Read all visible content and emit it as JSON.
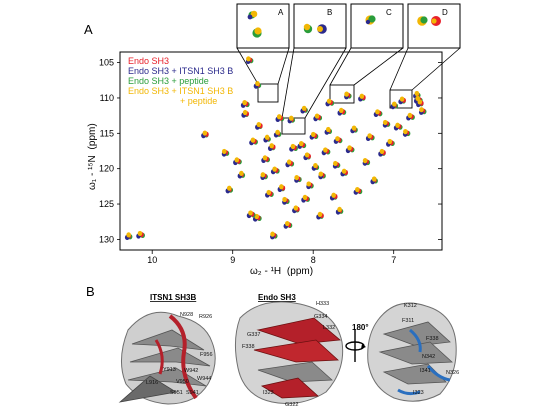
{
  "panel_a": {
    "label": "A",
    "legend": [
      {
        "text": "Endo SH3",
        "color": "#e8202a"
      },
      {
        "text": "Endo SH3 + ITSN1 SH3 B",
        "color": "#2b2a8c"
      },
      {
        "text": "Endo SH3 + peptide",
        "color": "#2a9d3a"
      },
      {
        "text": "Endo SH3 + ITSN1 SH3 B",
        "color": "#f2b705"
      },
      {
        "text": "+ peptide",
        "color": "#f2b705"
      }
    ],
    "insets": [
      "A",
      "B",
      "C",
      "D"
    ],
    "x_axis_label_main": "ω₂ - ¹H",
    "x_axis_label_unit": "(ppm)",
    "y_axis_label_main": "ω₁ - ¹⁵N",
    "y_axis_label_unit": "(ppm)"
  },
  "panel_b": {
    "label": "B",
    "structure_titles": [
      "ITSN1 SH3B",
      "Endo SH3"
    ],
    "rotation_label": "180°",
    "residues_left": [
      "N928",
      "R926",
      "F956",
      "Y913",
      "W942",
      "W944",
      "V950",
      "L916",
      "S951",
      "S941"
    ],
    "residues_middle": [
      "H333",
      "G334",
      "G337",
      "L332",
      "F338",
      "G322",
      "I323"
    ],
    "residues_right": [
      "K312",
      "F311",
      "F338",
      "N342",
      "I341",
      "N326",
      "I323"
    ]
  },
  "colors": {
    "red": "#e8202a",
    "navy": "#2b2a8c",
    "green": "#2a9d3a",
    "yellow": "#f2b705",
    "ribbon_gray": "#8a8a8a",
    "ribbon_red": "#b4202a",
    "ribbon_blue": "#2a6fbf"
  },
  "chart_data": {
    "type": "scatter",
    "title": "",
    "xlabel": "ω₂ - ¹H (ppm)",
    "ylabel": "ω₁ - ¹⁵N (ppm)",
    "xlim": [
      10.4,
      6.4
    ],
    "ylim": [
      131.5,
      103.5
    ],
    "x_inverted": true,
    "y_inverted": true,
    "x_ticks": [
      10,
      9,
      8,
      7
    ],
    "y_ticks": [
      105,
      110,
      115,
      120,
      125,
      130
    ],
    "series": [
      {
        "name": "Endo SH3",
        "color": "#e8202a"
      },
      {
        "name": "Endo SH3 + ITSN1 SH3 B",
        "color": "#2b2a8c"
      },
      {
        "name": "Endo SH3 + peptide",
        "color": "#2a9d3a"
      },
      {
        "name": "Endo SH3 + ITSN1 SH3 B + peptide",
        "color": "#f2b705"
      }
    ],
    "peaks": [
      [
        10.3,
        129.6
      ],
      [
        10.15,
        129.4
      ],
      [
        9.35,
        115.2
      ],
      [
        9.1,
        117.8
      ],
      [
        8.95,
        119.0
      ],
      [
        8.9,
        120.9
      ],
      [
        8.85,
        110.9
      ],
      [
        8.85,
        112.3
      ],
      [
        8.8,
        104.7
      ],
      [
        8.75,
        116.2
      ],
      [
        8.7,
        108.2
      ],
      [
        8.7,
        127.0
      ],
      [
        8.68,
        114.0
      ],
      [
        8.62,
        121.1
      ],
      [
        8.6,
        118.7
      ],
      [
        8.58,
        115.8
      ],
      [
        8.55,
        123.6
      ],
      [
        8.52,
        117.0
      ],
      [
        8.5,
        129.5
      ],
      [
        8.48,
        120.3
      ],
      [
        8.45,
        115.1
      ],
      [
        8.42,
        112.9
      ],
      [
        8.4,
        122.8
      ],
      [
        8.35,
        124.6
      ],
      [
        8.3,
        119.3
      ],
      [
        8.28,
        113.1
      ],
      [
        8.25,
        117.1
      ],
      [
        8.22,
        125.8
      ],
      [
        8.2,
        121.5
      ],
      [
        8.15,
        116.7
      ],
      [
        8.12,
        111.7
      ],
      [
        8.1,
        124.3
      ],
      [
        8.08,
        118.3
      ],
      [
        8.05,
        122.4
      ],
      [
        8.0,
        115.4
      ],
      [
        7.98,
        119.8
      ],
      [
        7.95,
        112.8
      ],
      [
        7.92,
        126.7
      ],
      [
        7.9,
        121.0
      ],
      [
        7.85,
        117.6
      ],
      [
        7.82,
        114.7
      ],
      [
        7.8,
        110.7
      ],
      [
        7.75,
        124.0
      ],
      [
        7.72,
        119.5
      ],
      [
        7.7,
        116.0
      ],
      [
        7.68,
        126.0
      ],
      [
        7.65,
        112.0
      ],
      [
        7.62,
        120.6
      ],
      [
        7.58,
        109.7
      ],
      [
        7.55,
        117.3
      ],
      [
        7.5,
        114.5
      ],
      [
        7.45,
        123.2
      ],
      [
        7.4,
        110.0
      ],
      [
        7.35,
        119.1
      ],
      [
        7.3,
        115.6
      ],
      [
        7.25,
        121.7
      ],
      [
        7.2,
        112.2
      ],
      [
        7.15,
        117.8
      ],
      [
        7.1,
        113.7
      ],
      [
        7.05,
        116.4
      ],
      [
        7.0,
        111.1
      ],
      [
        6.95,
        114.1
      ],
      [
        6.9,
        110.4
      ],
      [
        6.85,
        115.0
      ],
      [
        6.8,
        112.7
      ],
      [
        6.72,
        109.6
      ],
      [
        6.7,
        110.3
      ],
      [
        6.68,
        110.8
      ],
      [
        6.65,
        111.9
      ],
      [
        8.78,
        126.5
      ],
      [
        9.05,
        123.0
      ],
      [
        8.32,
        128.0
      ]
    ]
  }
}
